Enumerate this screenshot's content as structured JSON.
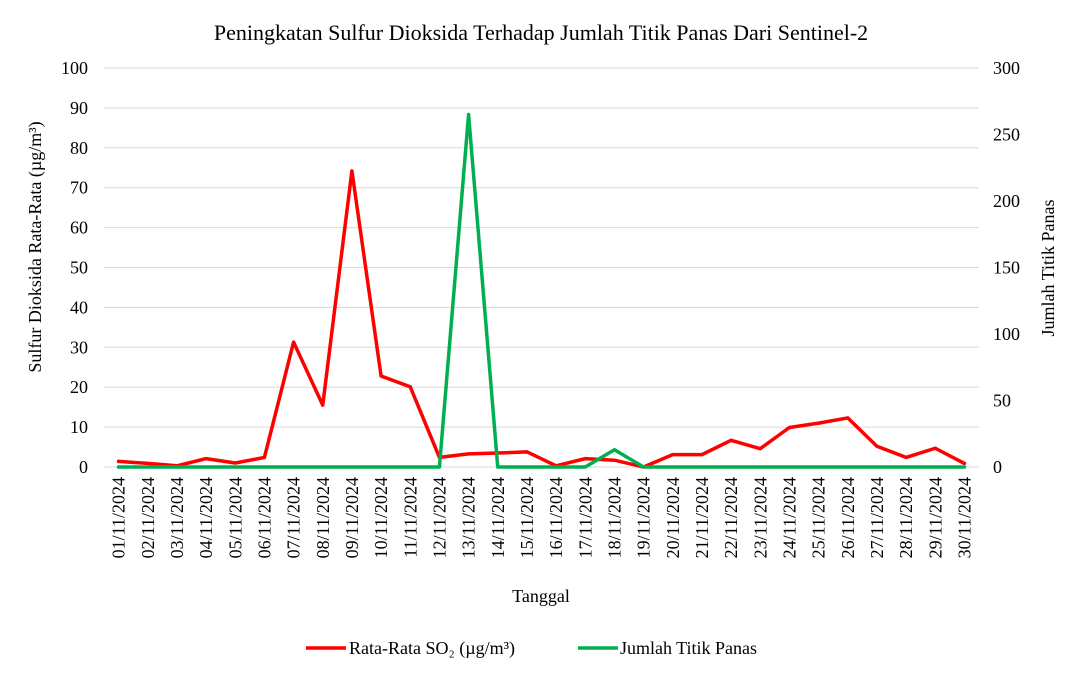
{
  "chart_data": {
    "type": "line",
    "title": "Peningkatan Sulfur Dioksida Terhadap Jumlah Titik Panas Dari Sentinel-2",
    "xlabel": "Tanggal",
    "ylabel_left": "Sulfur Dioksida Rata-Rata (µg/m³)",
    "ylabel_right": "Jumlah Titik Panas",
    "ylim_left": [
      0,
      100
    ],
    "ylim_right": [
      0,
      300
    ],
    "yticks_left": [
      "0",
      "10",
      "20",
      "30",
      "40",
      "50",
      "60",
      "70",
      "80",
      "90",
      "100"
    ],
    "yticks_right": [
      "0",
      "50",
      "100",
      "150",
      "200",
      "250",
      "300"
    ],
    "grid": true,
    "legend_position": "bottom",
    "categories": [
      "01/11/2024",
      "02/11/2024",
      "03/11/2024",
      "04/11/2024",
      "05/11/2024",
      "06/11/2024",
      "07/11/2024",
      "08/11/2024",
      "09/11/2024",
      "10/11/2024",
      "11/11/2024",
      "12/11/2024",
      "13/11/2024",
      "14/11/2024",
      "15/11/2024",
      "16/11/2024",
      "17/11/2024",
      "18/11/2024",
      "19/11/2024",
      "20/11/2024",
      "21/11/2024",
      "22/11/2024",
      "23/11/2024",
      "24/11/2024",
      "25/11/2024",
      "26/11/2024",
      "27/11/2024",
      "28/11/2024",
      "29/11/2024",
      "30/11/2024"
    ],
    "series": [
      {
        "name": "Rata-Rata SO₂ (µg/m³)",
        "axis": "left",
        "color": "#ff0000",
        "values": [
          1.4,
          0.9,
          0.3,
          2.1,
          1.0,
          2.4,
          31.3,
          15.5,
          74.2,
          22.8,
          20.1,
          2.4,
          3.3,
          3.5,
          3.8,
          0.3,
          2.1,
          1.7,
          0.0,
          3.1,
          3.1,
          6.7,
          4.6,
          9.9,
          11.0,
          12.3,
          5.2,
          2.4,
          4.7,
          0.9
        ]
      },
      {
        "name": "Jumlah Titik Panas",
        "axis": "right",
        "color": "#00b050",
        "values": [
          0,
          0,
          0,
          0,
          0,
          0,
          0,
          0,
          0,
          0,
          0,
          0,
          265,
          0,
          0,
          0,
          0,
          13,
          0,
          0,
          0,
          0,
          0,
          0,
          0,
          0,
          0,
          0,
          0,
          0
        ]
      }
    ]
  }
}
